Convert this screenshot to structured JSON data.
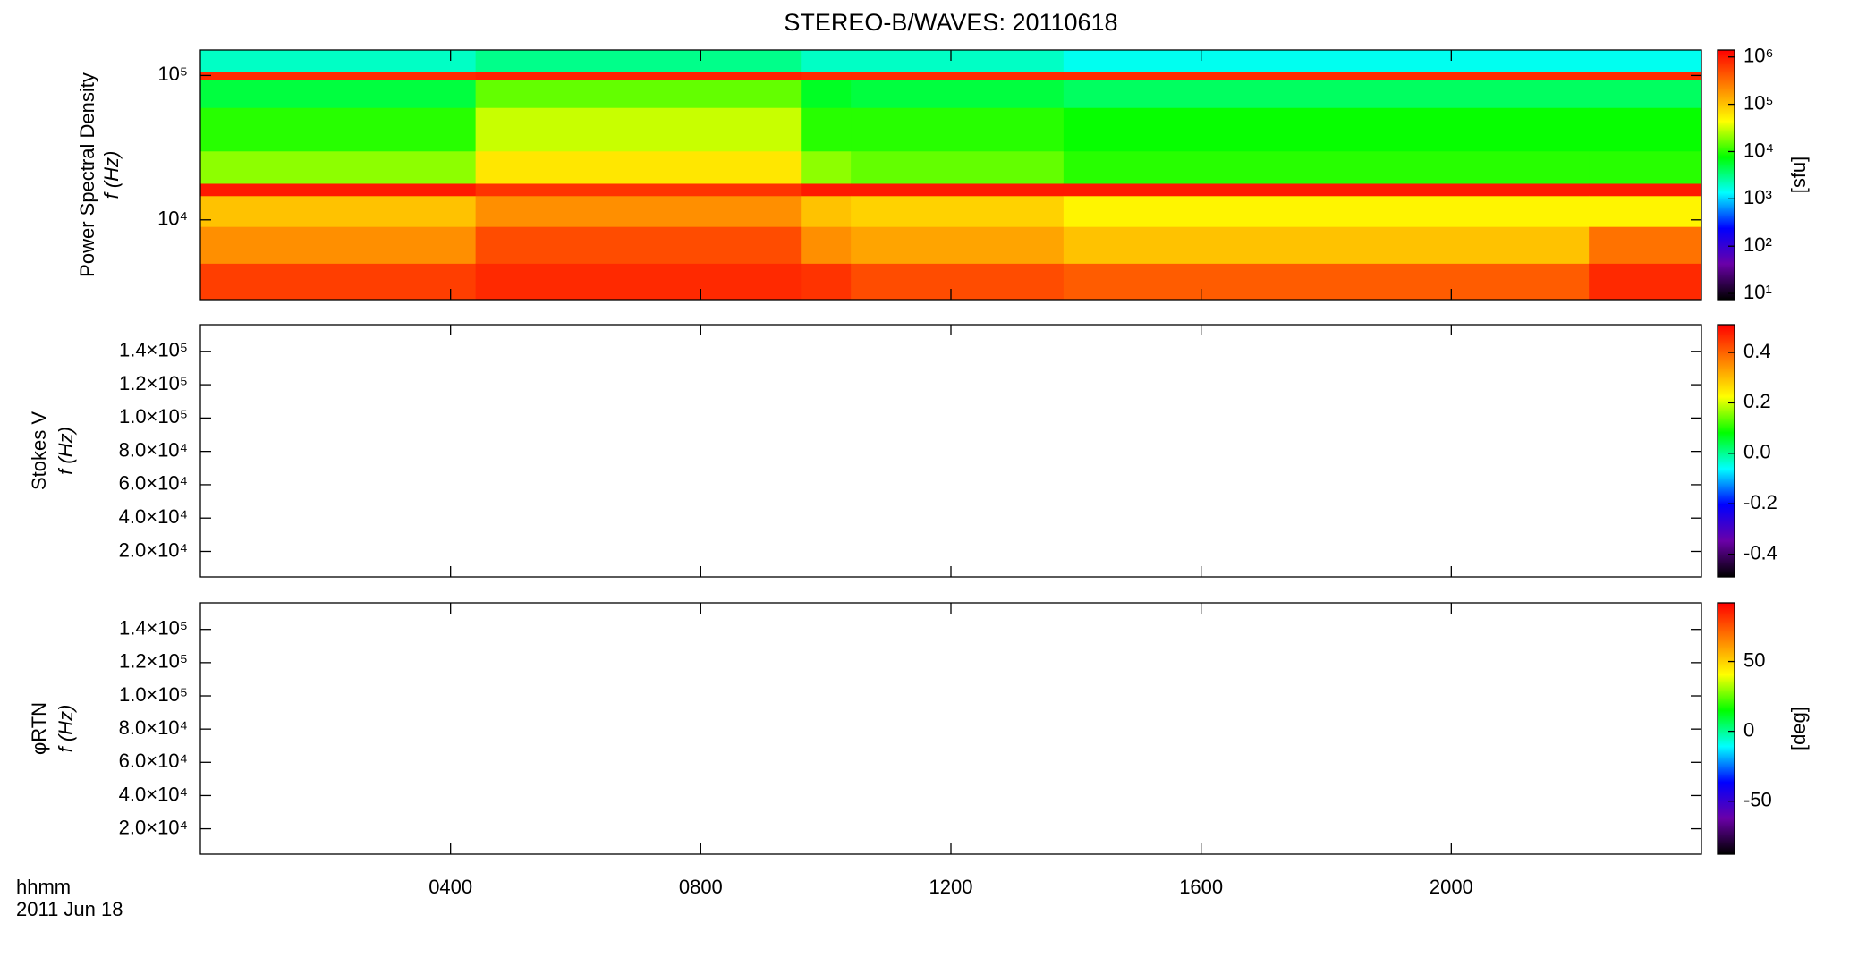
{
  "chart_data": [
    {
      "type": "heatmap",
      "title": "STEREO-B/WAVES: 20110618",
      "ylabel": [
        "Power Spectral Density",
        "f (Hz)"
      ],
      "ylog": true,
      "ylim": [
        2800,
        150000
      ],
      "yticks": [
        {
          "value": 10000,
          "label": "10⁴"
        },
        {
          "value": 100000,
          "label": "10⁵"
        }
      ],
      "time_edges": [
        0,
        4.4,
        9.6,
        10.4,
        13.8,
        22.2,
        24
      ],
      "freq_edges": [
        2800,
        5000,
        9000,
        14700,
        17900,
        30000,
        60000,
        94000,
        106000,
        150000
      ],
      "z": [
        [
          600000,
          200000,
          100000,
          1000000,
          20000,
          10000,
          5000,
          800000,
          2000
        ],
        [
          800000,
          500000,
          200000,
          700000,
          60000,
          30000,
          15000,
          900000,
          3000
        ],
        [
          700000,
          200000,
          100000,
          1000000,
          20000,
          10000,
          6000,
          800000,
          2000
        ],
        [
          500000,
          150000,
          80000,
          1000000,
          15000,
          10000,
          5000,
          800000,
          2000
        ],
        [
          400000,
          100000,
          50000,
          1000000,
          10000,
          8000,
          4000,
          800000,
          1500
        ],
        [
          800000,
          300000,
          50000,
          1000000,
          10000,
          8000,
          4000,
          800000,
          1500
        ]
      ],
      "zlog": true,
      "zlim": [
        7.4,
        1400000
      ],
      "zticks": [
        {
          "value": 10,
          "label": "10¹"
        },
        {
          "value": 100,
          "label": "10²"
        },
        {
          "value": 1000,
          "label": "10³"
        },
        {
          "value": 10000,
          "label": "10⁴"
        },
        {
          "value": 100000,
          "label": "10⁵"
        },
        {
          "value": 1000000,
          "label": "10⁶"
        }
      ],
      "zlabel": "[sfu]",
      "colormap": [
        "#000000",
        "#6a00a8",
        "#0000ff",
        "#00ffff",
        "#00ff00",
        "#ffff00",
        "#ff8000",
        "#ff0000"
      ]
    },
    {
      "type": "heatmap",
      "ylabel": [
        "Stokes V",
        "f (Hz)"
      ],
      "ylim": [
        4700,
        156000
      ],
      "yticks": [
        {
          "value": 20000,
          "label": "2.0×10⁴"
        },
        {
          "value": 40000,
          "label": "4.0×10⁴"
        },
        {
          "value": 60000,
          "label": "6.0×10⁴"
        },
        {
          "value": 80000,
          "label": "8.0×10⁴"
        },
        {
          "value": 100000,
          "label": "1.0×10⁵"
        },
        {
          "value": 120000,
          "label": "1.2×10⁵"
        },
        {
          "value": 140000,
          "label": "1.4×10⁵"
        }
      ],
      "zlim": [
        -0.49,
        0.51
      ],
      "zticks": [
        -0.4,
        -0.2,
        {
          "value": 0,
          "label": "0.0"
        },
        0.2,
        0.4
      ],
      "colormap": [
        "#000000",
        "#6a00a8",
        "#0000ff",
        "#00ffff",
        "#00ff00",
        "#ffff00",
        "#ff8000",
        "#ff0000"
      ]
    },
    {
      "type": "heatmap",
      "ylabel": [
        "φRTN",
        "f (Hz)"
      ],
      "ylim": [
        4700,
        156000
      ],
      "yticks": [
        {
          "value": 20000,
          "label": "2.0×10⁴"
        },
        {
          "value": 40000,
          "label": "4.0×10⁴"
        },
        {
          "value": 60000,
          "label": "6.0×10⁴"
        },
        {
          "value": 80000,
          "label": "8.0×10⁴"
        },
        {
          "value": 100000,
          "label": "1.0×10⁵"
        },
        {
          "value": 120000,
          "label": "1.2×10⁵"
        },
        {
          "value": 140000,
          "label": "1.4×10⁵"
        }
      ],
      "zlim": [
        -88,
        92
      ],
      "zticks": [
        -50,
        0,
        50
      ],
      "zlabel": "[deg]",
      "colormap": [
        "#000000",
        "#6a00a8",
        "#0000ff",
        "#00ffff",
        "#00ff00",
        "#ffff00",
        "#ff8000",
        "#ff0000"
      ],
      "xlabel": "hhmm",
      "date": "2011 Jun 18",
      "xlim": [
        0,
        24
      ],
      "xticks": [
        {
          "value": 4,
          "label": "0400"
        },
        {
          "value": 8,
          "label": "0800"
        },
        {
          "value": 12,
          "label": "1200"
        },
        {
          "value": 16,
          "label": "1600"
        },
        {
          "value": 20,
          "label": "2000"
        }
      ]
    }
  ]
}
